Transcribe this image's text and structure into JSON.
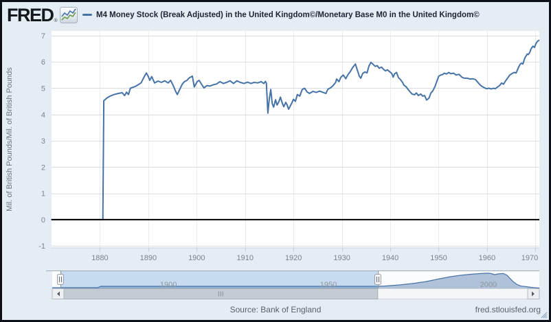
{
  "header": {
    "logo_text": "FRED",
    "registered": "®",
    "legend_label": "M4 Money Stock (Break Adjusted) in the United Kingdom©/Monetary Base M0 in the United Kingdom©"
  },
  "footer": {
    "source": "Source: Bank of England",
    "site": "fred.stlouisfed.org"
  },
  "colors": {
    "series": "#4572a7",
    "background": "#e4ecf4",
    "plot_background": "#ffffff",
    "zero_line": "#000000",
    "grid_h": "#d8dde3",
    "grid_v": "#e8ecf0",
    "axis_line": "#c3ccd6",
    "tick_label": "#7a828c",
    "nav_selected": "#c7dbf0",
    "nav_label": "#8d949b",
    "scrollbar_thumb": "#c4cbd3"
  },
  "chart_data": {
    "type": "line",
    "title": "M4 Money Stock (Break Adjusted) in the United Kingdom©/Monetary Base M0 in the United Kingdom©",
    "xlabel": "",
    "ylabel": "Mil. of British Pounds/Mil. of British Pounds",
    "x_ticks": [
      1880,
      1890,
      1900,
      1910,
      1920,
      1930,
      1940,
      1950,
      1960,
      1970
    ],
    "y_ticks": [
      7,
      6,
      5,
      4,
      3,
      2,
      1,
      0,
      -1
    ],
    "xlim": [
      1870,
      1970.8
    ],
    "ylim": [
      -1.06,
      7.18
    ],
    "grid": true,
    "zero_line": 0,
    "legend_position": "top",
    "series": [
      {
        "name": "M4 Money Stock (Break Adjusted) in the United Kingdom©/Monetary Base M0 in the United Kingdom©",
        "color": "#4572a7",
        "points": [
          [
            1870,
            0
          ],
          [
            1880.6,
            0
          ],
          [
            1880.8,
            4.52
          ],
          [
            1881.4,
            4.62
          ],
          [
            1882.1,
            4.7
          ],
          [
            1882.9,
            4.76
          ],
          [
            1883.8,
            4.8
          ],
          [
            1884.6,
            4.83
          ],
          [
            1885.1,
            4.72
          ],
          [
            1885.5,
            4.85
          ],
          [
            1885.9,
            4.76
          ],
          [
            1886.3,
            5.0
          ],
          [
            1887.2,
            5.06
          ],
          [
            1887.8,
            5.12
          ],
          [
            1888.5,
            5.2
          ],
          [
            1889.2,
            5.45
          ],
          [
            1889.6,
            5.58
          ],
          [
            1890,
            5.44
          ],
          [
            1890.3,
            5.3
          ],
          [
            1890.7,
            5.44
          ],
          [
            1891.3,
            5.2
          ],
          [
            1892,
            5.27
          ],
          [
            1892.7,
            5.22
          ],
          [
            1893.4,
            5.28
          ],
          [
            1894.1,
            5.2
          ],
          [
            1894.6,
            5.3
          ],
          [
            1895.1,
            5.12
          ],
          [
            1895.7,
            4.86
          ],
          [
            1896,
            4.76
          ],
          [
            1896.6,
            5.0
          ],
          [
            1897,
            5.15
          ],
          [
            1897.4,
            5.24
          ],
          [
            1898,
            5.3
          ],
          [
            1898.5,
            5.4
          ],
          [
            1899.1,
            5.46
          ],
          [
            1899.5,
            5.05
          ],
          [
            1900.1,
            5.25
          ],
          [
            1900.5,
            5.3
          ],
          [
            1901.1,
            5.12
          ],
          [
            1901.5,
            5.01
          ],
          [
            1902.1,
            5.1
          ],
          [
            1902.7,
            5.08
          ],
          [
            1903.4,
            5.13
          ],
          [
            1904.1,
            5.16
          ],
          [
            1904.8,
            5.25
          ],
          [
            1905.5,
            5.18
          ],
          [
            1906.2,
            5.22
          ],
          [
            1906.9,
            5.28
          ],
          [
            1907.6,
            5.18
          ],
          [
            1908.3,
            5.28
          ],
          [
            1909,
            5.22
          ],
          [
            1909.8,
            5.18
          ],
          [
            1910.5,
            5.23
          ],
          [
            1911.2,
            5.18
          ],
          [
            1911.9,
            5.22
          ],
          [
            1912.6,
            5.2
          ],
          [
            1913.3,
            5.25
          ],
          [
            1913.9,
            5.18
          ],
          [
            1914.2,
            5.26
          ],
          [
            1914.4,
            5.2
          ],
          [
            1914.7,
            4.05
          ],
          [
            1915,
            4.6
          ],
          [
            1915.3,
            4.95
          ],
          [
            1915.6,
            4.42
          ],
          [
            1915.9,
            4.28
          ],
          [
            1916.3,
            4.56
          ],
          [
            1916.6,
            4.36
          ],
          [
            1917,
            4.5
          ],
          [
            1917.3,
            4.66
          ],
          [
            1917.7,
            4.42
          ],
          [
            1918,
            4.3
          ],
          [
            1918.4,
            4.46
          ],
          [
            1918.7,
            4.36
          ],
          [
            1919,
            4.2
          ],
          [
            1919.6,
            4.42
          ],
          [
            1920,
            4.58
          ],
          [
            1920.4,
            4.5
          ],
          [
            1920.8,
            4.76
          ],
          [
            1921.3,
            4.7
          ],
          [
            1921.8,
            4.95
          ],
          [
            1922.3,
            5.0
          ],
          [
            1922.8,
            4.86
          ],
          [
            1923.3,
            4.8
          ],
          [
            1924,
            4.88
          ],
          [
            1924.7,
            4.84
          ],
          [
            1925.4,
            4.89
          ],
          [
            1926.1,
            4.84
          ],
          [
            1926.7,
            4.8
          ],
          [
            1927.1,
            4.96
          ],
          [
            1927.7,
            5.02
          ],
          [
            1928.2,
            5.1
          ],
          [
            1928.7,
            5.22
          ],
          [
            1928.9,
            5.35
          ],
          [
            1929.4,
            5.25
          ],
          [
            1929.8,
            5.42
          ],
          [
            1930.3,
            5.5
          ],
          [
            1930.8,
            5.36
          ],
          [
            1931.2,
            5.5
          ],
          [
            1931.8,
            5.65
          ],
          [
            1932.2,
            5.78
          ],
          [
            1932.8,
            5.92
          ],
          [
            1933.2,
            5.68
          ],
          [
            1933.6,
            5.46
          ],
          [
            1933.9,
            5.38
          ],
          [
            1934.3,
            5.56
          ],
          [
            1934.8,
            5.62
          ],
          [
            1935.2,
            5.58
          ],
          [
            1935.6,
            5.85
          ],
          [
            1936,
            5.98
          ],
          [
            1936.5,
            5.9
          ],
          [
            1936.9,
            5.83
          ],
          [
            1937.3,
            5.86
          ],
          [
            1937.7,
            5.76
          ],
          [
            1938.2,
            5.8
          ],
          [
            1938.6,
            5.72
          ],
          [
            1939,
            5.66
          ],
          [
            1939.4,
            5.7
          ],
          [
            1939.9,
            5.62
          ],
          [
            1940.3,
            5.56
          ],
          [
            1940.6,
            5.42
          ],
          [
            1940.9,
            5.55
          ],
          [
            1941.3,
            5.6
          ],
          [
            1941.7,
            5.4
          ],
          [
            1942.1,
            5.33
          ],
          [
            1942.6,
            5.2
          ],
          [
            1942.8,
            5.12
          ],
          [
            1943.3,
            5.05
          ],
          [
            1943.7,
            4.95
          ],
          [
            1944.1,
            4.86
          ],
          [
            1944.5,
            4.78
          ],
          [
            1945,
            4.75
          ],
          [
            1945.4,
            4.82
          ],
          [
            1945.8,
            4.72
          ],
          [
            1946.3,
            4.78
          ],
          [
            1946.7,
            4.7
          ],
          [
            1947.1,
            4.72
          ],
          [
            1947.5,
            4.55
          ],
          [
            1948,
            4.62
          ],
          [
            1948.4,
            4.82
          ],
          [
            1948.8,
            4.9
          ],
          [
            1949.2,
            5.05
          ],
          [
            1949.7,
            5.3
          ],
          [
            1950,
            5.45
          ],
          [
            1950.4,
            5.5
          ],
          [
            1950.8,
            5.52
          ],
          [
            1951.2,
            5.57
          ],
          [
            1951.6,
            5.54
          ],
          [
            1952.1,
            5.6
          ],
          [
            1952.5,
            5.55
          ],
          [
            1953.1,
            5.57
          ],
          [
            1953.6,
            5.5
          ],
          [
            1954.2,
            5.53
          ],
          [
            1954.8,
            5.42
          ],
          [
            1955.3,
            5.38
          ],
          [
            1955.9,
            5.38
          ],
          [
            1956.5,
            5.35
          ],
          [
            1957,
            5.36
          ],
          [
            1957.6,
            5.33
          ],
          [
            1958.2,
            5.2
          ],
          [
            1958.7,
            5.1
          ],
          [
            1959.3,
            5.03
          ],
          [
            1959.9,
            4.98
          ],
          [
            1960.4,
            5.0
          ],
          [
            1960.9,
            4.97
          ],
          [
            1961.3,
            5.0
          ],
          [
            1961.7,
            4.98
          ],
          [
            1962.2,
            5.05
          ],
          [
            1962.6,
            5.1
          ],
          [
            1963,
            5.2
          ],
          [
            1963.4,
            5.15
          ],
          [
            1963.9,
            5.3
          ],
          [
            1964.3,
            5.4
          ],
          [
            1964.7,
            5.5
          ],
          [
            1965.1,
            5.55
          ],
          [
            1965.6,
            5.6
          ],
          [
            1966,
            5.58
          ],
          [
            1966.4,
            5.75
          ],
          [
            1966.8,
            5.9
          ],
          [
            1967.1,
            5.95
          ],
          [
            1967.4,
            5.92
          ],
          [
            1967.8,
            6.15
          ],
          [
            1968.3,
            6.3
          ],
          [
            1968.5,
            6.28
          ],
          [
            1968.8,
            6.35
          ],
          [
            1969.1,
            6.5
          ],
          [
            1969.5,
            6.6
          ],
          [
            1969.8,
            6.55
          ],
          [
            1970.1,
            6.7
          ],
          [
            1970.4,
            6.78
          ],
          [
            1970.7,
            6.82
          ]
        ]
      }
    ]
  },
  "navigator": {
    "labels": [
      1900,
      1950,
      2000
    ],
    "xlim": [
      1863.7,
      2015.9
    ],
    "selected_range": [
      1866.3,
      1965.4
    ],
    "area": {
      "color": "#4572a7",
      "points": [
        [
          1863.7,
          0.04
        ],
        [
          1877.9,
          0.04
        ],
        [
          1878.9,
          0.115
        ],
        [
          1900,
          0.115
        ],
        [
          1930,
          0.115
        ],
        [
          1960,
          0.115
        ],
        [
          1965.4,
          0.12
        ],
        [
          1967.6,
          0.13
        ],
        [
          1971.9,
          0.19
        ],
        [
          1976.2,
          0.27
        ],
        [
          1980.5,
          0.38
        ],
        [
          1984.8,
          0.54
        ],
        [
          1988,
          0.65
        ],
        [
          1991.2,
          0.73
        ],
        [
          1994.4,
          0.79
        ],
        [
          1997.6,
          0.83
        ],
        [
          1999.8,
          0.85
        ],
        [
          2000.8,
          0.83
        ],
        [
          2001.9,
          0.77
        ],
        [
          2003.2,
          0.81
        ],
        [
          2004.7,
          0.83
        ],
        [
          2005.8,
          0.73
        ],
        [
          2006.6,
          0.58
        ],
        [
          2007.7,
          0.38
        ],
        [
          2008.8,
          0.23
        ],
        [
          2010.1,
          0.13
        ],
        [
          2011.6,
          0.1
        ],
        [
          2013.1,
          0.06
        ],
        [
          2014.4,
          0.04
        ],
        [
          2015.9,
          0.02
        ]
      ]
    }
  }
}
